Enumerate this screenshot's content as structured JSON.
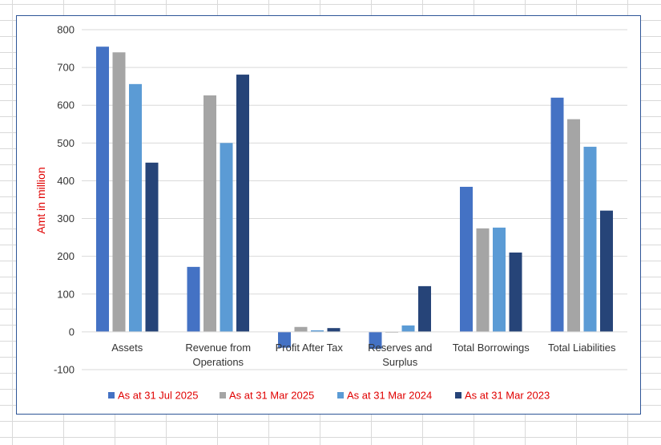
{
  "chart_data": {
    "type": "bar",
    "title": "",
    "xlabel": "",
    "ylabel": "Amt in million",
    "ylim": [
      -100,
      800
    ],
    "yticks": [
      -100,
      0,
      100,
      200,
      300,
      400,
      500,
      600,
      700,
      800
    ],
    "grid": true,
    "legend_position": "bottom",
    "categories": [
      [
        "Assets"
      ],
      [
        "Revenue from",
        "Operations"
      ],
      [
        "Profit After Tax"
      ],
      [
        "Reserves and",
        "Surplus"
      ],
      [
        "Total Borrowings"
      ],
      [
        "Total Liabilities"
      ]
    ],
    "series": [
      {
        "name": "As at 31 Jul 2025",
        "color": "#4472c4",
        "values": [
          755,
          172,
          -42,
          -45,
          384,
          620
        ]
      },
      {
        "name": "As at 31 Mar 2025",
        "color": "#a5a5a5",
        "values": [
          740,
          626,
          13,
          -2,
          274,
          563
        ]
      },
      {
        "name": "As at 31 Mar 2024",
        "color": "#5b9bd5",
        "values": [
          656,
          500,
          4,
          17,
          276,
          490
        ]
      },
      {
        "name": "As at 31 Mar 2023",
        "color": "#264478",
        "values": [
          448,
          681,
          10,
          121,
          210,
          321
        ]
      }
    ],
    "colors": {
      "axis_label": "#e00000",
      "legend_text": "#e00000",
      "tick_text": "#333333",
      "border": "#2e5597"
    }
  }
}
